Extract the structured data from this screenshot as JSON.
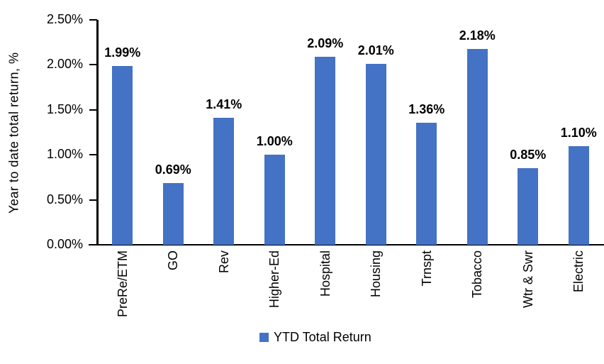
{
  "chart_data": {
    "type": "bar",
    "categories": [
      "PreRe/ETM",
      "GO",
      "Rev",
      "Higher-Ed",
      "Hospital",
      "Housing",
      "Trnspt",
      "Tobacco",
      "Wtr & Swr",
      "Electric"
    ],
    "values": [
      1.99,
      0.69,
      1.41,
      1.0,
      2.09,
      2.01,
      1.36,
      2.18,
      0.85,
      1.1
    ],
    "value_labels": [
      "1.99%",
      "0.69%",
      "1.41%",
      "1.00%",
      "2.09%",
      "2.01%",
      "1.36%",
      "2.18%",
      "0.85%",
      "1.10%"
    ],
    "title": "",
    "xlabel": "",
    "ylabel": "Year to date total return, %",
    "ylim": [
      0,
      2.5
    ],
    "ytick_step": 0.5,
    "ytick_labels": [
      "0.00%",
      "0.50%",
      "1.00%",
      "1.50%",
      "2.00%",
      "2.50%"
    ],
    "grid": false,
    "legend": [
      "YTD Total Return"
    ],
    "legend_position": "bottom-center",
    "bar_color": "#4472C4",
    "axis_color": "#000000",
    "label_color": "#000000"
  }
}
